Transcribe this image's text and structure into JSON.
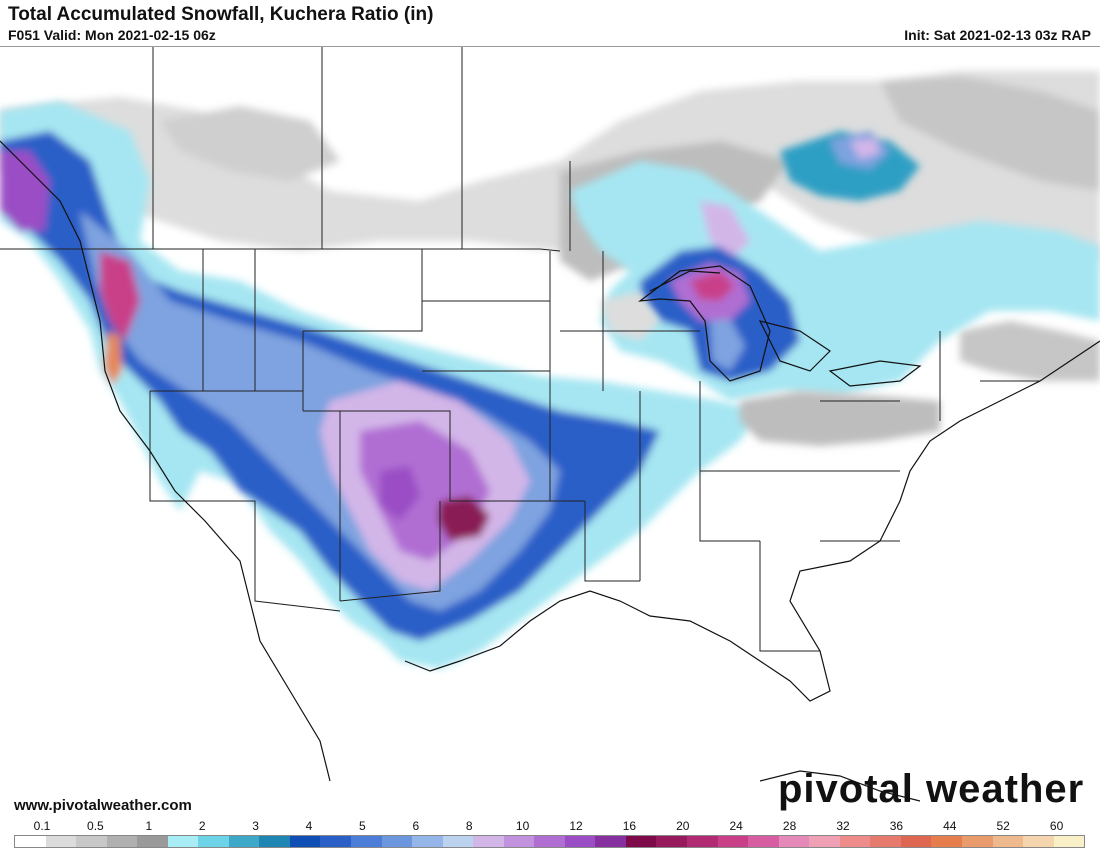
{
  "header": {
    "title": "Total Accumulated Snowfall, Kuchera Ratio (in)",
    "valid": "F051 Valid: Mon 2021-02-15 06z",
    "init": "Init: Sat 2021-02-13 03z RAP"
  },
  "footer": {
    "url": "www.pivotalweather.com",
    "brand": "pivotal weather"
  },
  "scale": {
    "ticks": [
      "0.1",
      "0.5",
      "1",
      "2",
      "3",
      "4",
      "5",
      "6",
      "8",
      "10",
      "12",
      "16",
      "20",
      "24",
      "28",
      "32",
      "36",
      "44",
      "52",
      "60"
    ],
    "colors": [
      "#ffffff",
      "#dcdcdc",
      "#c8c8c8",
      "#b0b0b0",
      "#9a9a9a",
      "#a8ecf5",
      "#6dd3e6",
      "#3ea8c9",
      "#1f86b4",
      "#0f4fb5",
      "#2a5fc8",
      "#4c7dd8",
      "#6c97df",
      "#94b6e8",
      "#bcd3f0",
      "#d3b6e8",
      "#c392de",
      "#b06ed3",
      "#9a4dc5",
      "#86309f",
      "#7e0a4a",
      "#971a5d",
      "#b02b73",
      "#c94089",
      "#d65da1",
      "#e58ab8",
      "#f0a0b5",
      "#ee8c8c",
      "#e67a6c",
      "#df6650",
      "#e57d4c",
      "#e99b6b",
      "#efb98e",
      "#f5d5ae",
      "#faf0c8"
    ]
  },
  "map": {
    "region": "CONUS",
    "colors": {
      "land": "#ffffff",
      "light_gray": "#dddddd",
      "mid_gray": "#bdbdbd",
      "dark_gray": "#9c9c9c",
      "light_cyan": "#a6e6f2",
      "cyan": "#5fcbe2",
      "teal": "#2f9fc4",
      "blue": "#2a5fc8",
      "light_blue": "#7ea3e0",
      "lavender": "#d3b6e8",
      "purple": "#b06ed3",
      "violet": "#9a4dc5",
      "magenta": "#c94089",
      "dark_magenta": "#8a1a55",
      "orange": "#e6885a"
    }
  }
}
